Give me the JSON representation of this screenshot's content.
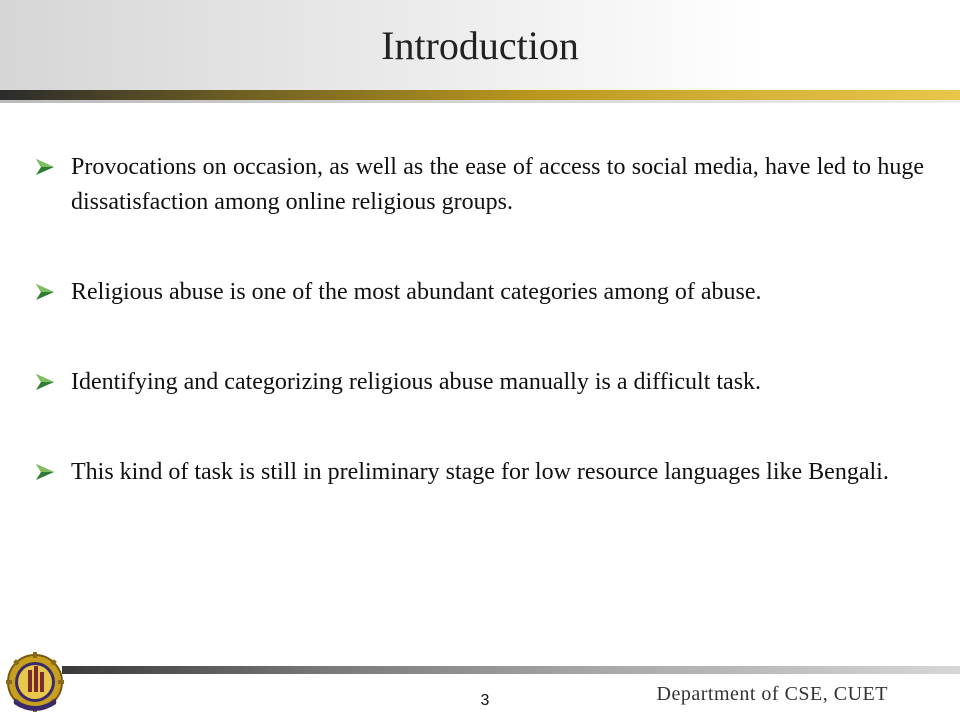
{
  "slide": {
    "title": "Introduction",
    "bullets": [
      "Provocations on occasion, as well as the ease of access to social media, have led to huge dissatisfaction among online religious groups.",
      "Religious abuse is one of the most abundant categories among of abuse.",
      "Identifying and categorizing religious abuse manually is a difficult task.",
      "This kind of task is still in preliminary stage for low resource languages like Bengali."
    ],
    "page_number": "3",
    "footer": "Department of CSE, CUET",
    "colors": {
      "accent_gold": "#d8b53a",
      "bullet_arrow": "#2e7d32",
      "text": "#111111"
    },
    "icons": {
      "bullet": "arrow-bullet-icon",
      "logo": "university-emblem-icon"
    }
  }
}
